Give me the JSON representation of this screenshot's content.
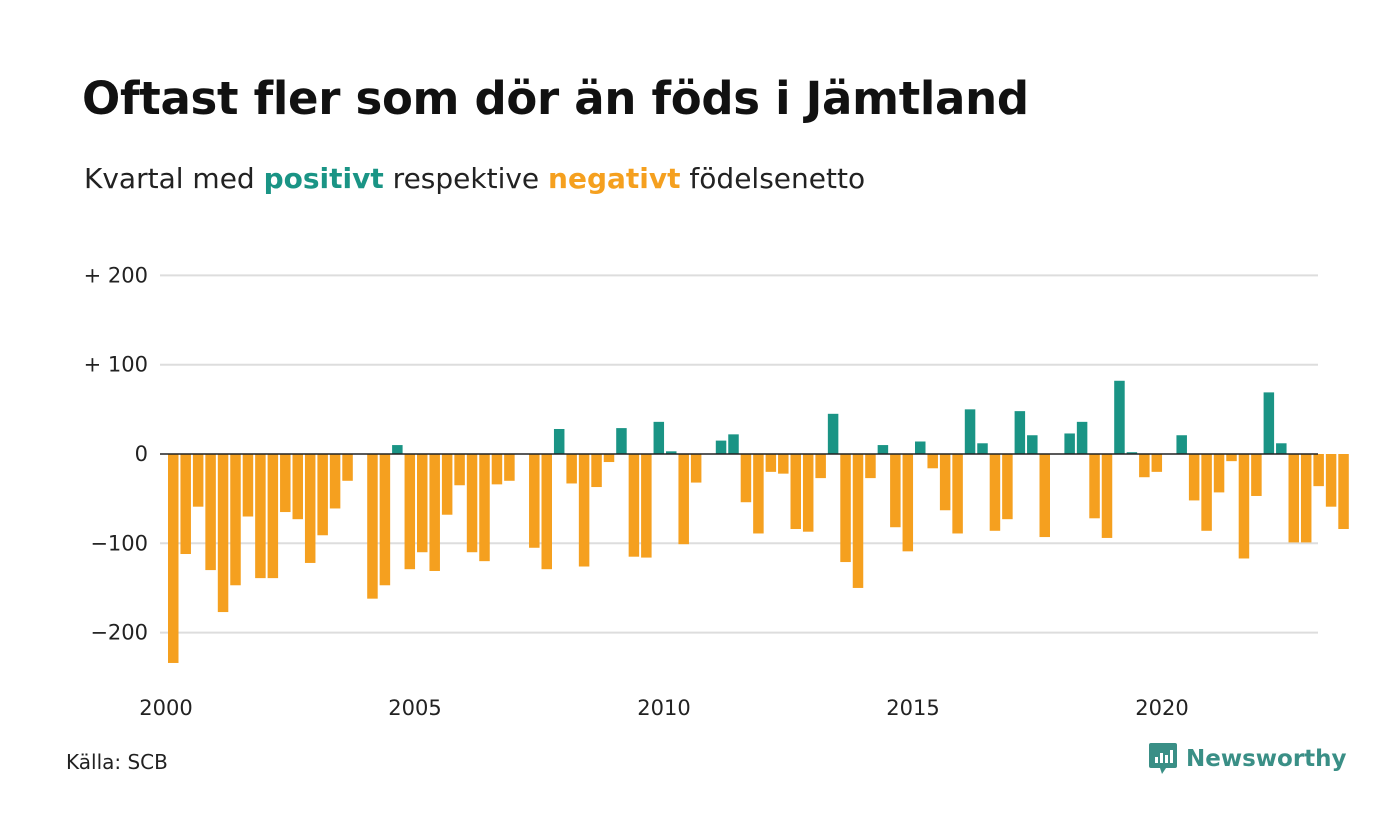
{
  "title": "Oftast fler som dör än föds i Jämtland",
  "subtitle": {
    "prefix": "Kvartal med ",
    "positive_word": "positivt",
    "middle": " respektive ",
    "negative_word": "negativt",
    "suffix": " födelsenetto"
  },
  "source": "Källa: SCB",
  "brand": {
    "name": "Newsworthy",
    "icon": "newsworthy-chart-bubble-icon"
  },
  "colors": {
    "positive": "#1a9485",
    "negative": "#f5a01f",
    "grid": "#dddddd",
    "zero_line": "#222222"
  },
  "chart_data": {
    "type": "bar",
    "title": "Oftast fler som dör än föds i Jämtland",
    "subtitle": "Kvartal med positivt respektive negativt födelsenetto",
    "xlabel": "",
    "ylabel": "",
    "x_start": "2000 Q1",
    "x_tick_labels": [
      "2000",
      "2005",
      "2010",
      "2015",
      "2020"
    ],
    "y_ticks": [
      {
        "value": 200,
        "label": "+ 200"
      },
      {
        "value": 100,
        "label": "+ 100"
      },
      {
        "value": 0,
        "label": "0"
      },
      {
        "value": -100,
        "label": "−100"
      },
      {
        "value": -200,
        "label": "−200"
      }
    ],
    "ylim": [
      -250,
      200
    ],
    "grid": true,
    "values": [
      -234,
      -112,
      -59,
      -130,
      -177,
      -147,
      -70,
      -139,
      -139,
      -65,
      -73,
      -122,
      -91,
      -61,
      -30,
      0,
      -162,
      -147,
      10,
      -129,
      -110,
      -131,
      -68,
      -35,
      -110,
      -120,
      -34,
      -30,
      0,
      -105,
      -129,
      28,
      -33,
      -126,
      -37,
      -9,
      29,
      -115,
      -116,
      36,
      3,
      -101,
      -32,
      0,
      15,
      22,
      -54,
      -89,
      -20,
      -22,
      -84,
      -87,
      -27,
      45,
      -121,
      -150,
      -27,
      10,
      -82,
      -109,
      14,
      -16,
      -63,
      -89,
      50,
      12,
      -86,
      -73,
      48,
      21,
      -93,
      0,
      23,
      36,
      -72,
      -94,
      82,
      2,
      -26,
      -20,
      0,
      21,
      -52,
      -86,
      -43,
      -8,
      -117,
      -47,
      69,
      12,
      -99,
      -99,
      -36,
      -59,
      -84
    ]
  }
}
